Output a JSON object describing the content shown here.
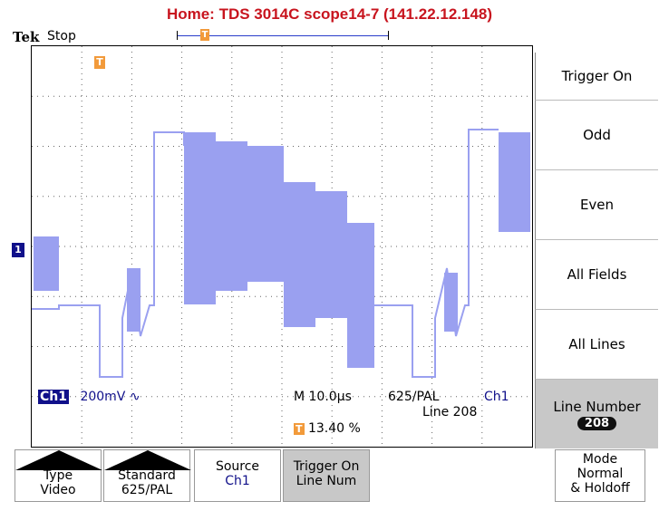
{
  "window_title": "Home:  TDS 3014C  scope14-7  (141.22.12.148)",
  "brand": "Tek",
  "acq_status": "Stop",
  "trigger_marker": "T",
  "channel_marker": "1",
  "readouts": {
    "channel": "Ch1",
    "scale": "200mV",
    "coupling_symbol": "∿",
    "timebase": "M 10.0µs",
    "standard": "625/PAL",
    "trigger_source": "Ch1",
    "line": "Line 208",
    "trigger_position": "13.40 %"
  },
  "side_menu": {
    "header": "Trigger On",
    "items": [
      "Odd",
      "Even",
      "All Fields",
      "All Lines"
    ],
    "line_number_label": "Line Number",
    "line_number_value": "208"
  },
  "bottom_menu": {
    "type": {
      "title": "Type",
      "value": "Video"
    },
    "standard": {
      "title": "Standard",
      "value": "625/PAL"
    },
    "source": {
      "title": "Source",
      "value": "Ch1"
    },
    "trigger_on": {
      "title": "Trigger On",
      "value": "Line Num"
    },
    "mode": {
      "title": "Mode",
      "value": "Normal",
      "extra": "& Holdoff"
    }
  },
  "colors": {
    "trace": "#9aa0f0",
    "trigger": "#f29a3a",
    "channel": "#10108a",
    "title": "#c8141e"
  }
}
